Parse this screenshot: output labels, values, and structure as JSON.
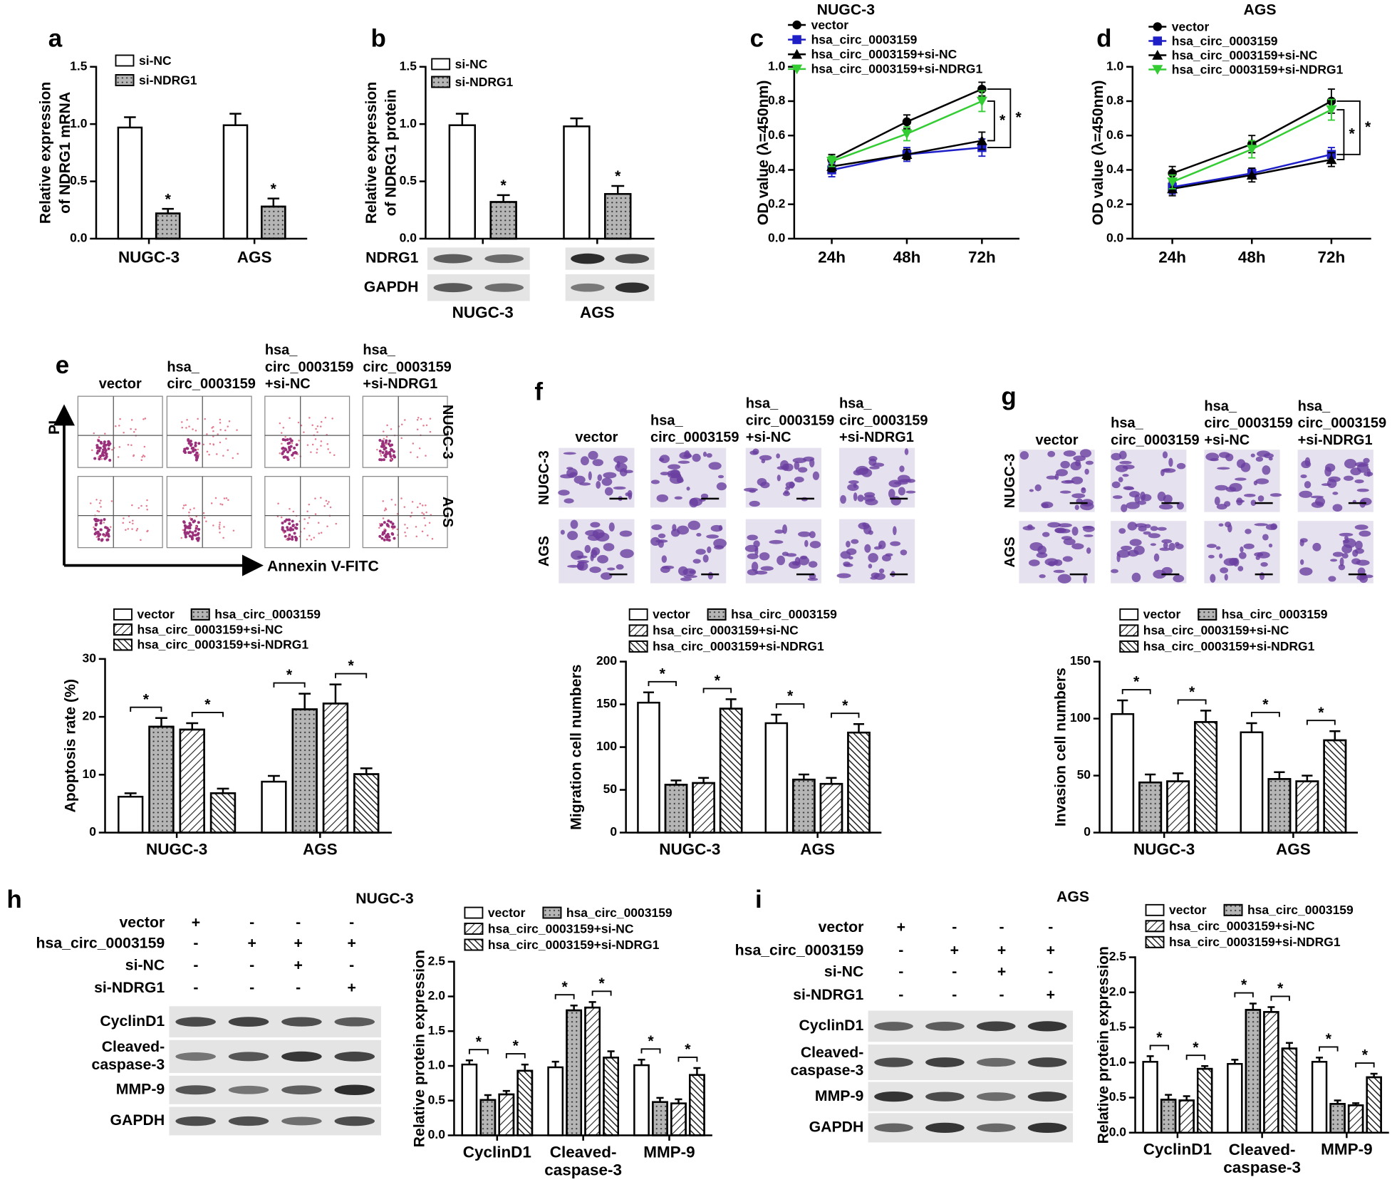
{
  "chart_data": [
    {
      "type": "bar",
      "label": "a",
      "ylabel": [
        "Relative expression",
        "of NDRG1 mRNA"
      ],
      "categories": [
        "NUGC-3",
        "AGS"
      ],
      "series": [
        {
          "name": "si-NC",
          "color": "#ffffff",
          "pattern": "none",
          "values": [
            0.97,
            0.99
          ],
          "errors": [
            0.09,
            0.1
          ]
        },
        {
          "name": "si-NDRG1",
          "color": "#b5b5b5",
          "pattern": "dots",
          "values": [
            0.22,
            0.28
          ],
          "errors": [
            0.04,
            0.07
          ]
        }
      ],
      "ylim": [
        0,
        1.5
      ],
      "yticks": [
        {
          "value": 0,
          "label": "0.0"
        },
        0.5,
        {
          "value": 1,
          "label": "1.0"
        },
        1.5
      ],
      "annotations": [
        "*",
        "*"
      ]
    },
    {
      "type": "bar",
      "label": "b",
      "ylabel": [
        "Relative expression",
        "of NDRG1 protein"
      ],
      "categories": [
        "NUGC-3",
        "AGS"
      ],
      "series": [
        {
          "name": "si-NC",
          "color": "#ffffff",
          "pattern": "none",
          "values": [
            0.99,
            0.98
          ],
          "errors": [
            0.1,
            0.07
          ]
        },
        {
          "name": "si-NDRG1",
          "color": "#b5b5b5",
          "pattern": "dots",
          "values": [
            0.32,
            0.39
          ],
          "errors": [
            0.06,
            0.07
          ]
        }
      ],
      "ylim": [
        0,
        1.5
      ],
      "yticks": [
        {
          "value": 0,
          "label": "0.0"
        },
        0.5,
        {
          "value": 1,
          "label": "1.0"
        },
        1.5
      ],
      "annotations": [
        "*",
        "*"
      ]
    },
    {
      "type": "line",
      "label": "c",
      "title": "NUGC-3",
      "ylabel": [
        "OD value (λ=450nm)"
      ],
      "categories": [
        "24h",
        "48h",
        "72h"
      ],
      "series": [
        {
          "name": "vector",
          "color": "#000000",
          "marker": "circle",
          "values": [
            0.46,
            0.68,
            0.87
          ],
          "errors": [
            0.03,
            0.04,
            0.04
          ]
        },
        {
          "name": "hsa_circ_0003159",
          "color": "#1f1fc8",
          "marker": "square",
          "values": [
            0.4,
            0.49,
            0.53
          ],
          "errors": [
            0.04,
            0.04,
            0.05
          ]
        },
        {
          "name": "hsa_circ_0003159+si-NC",
          "color": "#000000",
          "marker": "triangle",
          "values": [
            0.42,
            0.49,
            0.57
          ],
          "errors": [
            0.03,
            0.03,
            0.05
          ]
        },
        {
          "name": "hsa_circ_0003159+si-NDRG1",
          "color": "#33cc33",
          "marker": "triangle-down",
          "values": [
            0.45,
            0.61,
            0.8
          ],
          "errors": [
            0.03,
            0.04,
            0.06
          ]
        }
      ],
      "ylim": [
        0,
        1
      ],
      "yticks": [
        {
          "value": 0,
          "label": "0.0"
        },
        0.2,
        0.4,
        0.6,
        0.8,
        {
          "value": 1,
          "label": "1.0"
        }
      ],
      "annotations": [
        "*",
        "*"
      ]
    },
    {
      "type": "line",
      "label": "d",
      "title": "AGS",
      "ylabel": [
        "OD value (λ=450nm)"
      ],
      "categories": [
        "24h",
        "48h",
        "72h"
      ],
      "series": [
        {
          "name": "vector",
          "color": "#000000",
          "marker": "circle",
          "values": [
            0.38,
            0.55,
            0.8
          ],
          "errors": [
            0.04,
            0.05,
            0.07
          ]
        },
        {
          "name": "hsa_circ_0003159",
          "color": "#1f1fc8",
          "marker": "square",
          "values": [
            0.3,
            0.38,
            0.49
          ],
          "errors": [
            0.04,
            0.03,
            0.04
          ]
        },
        {
          "name": "hsa_circ_0003159+si-NC",
          "color": "#000000",
          "marker": "triangle",
          "values": [
            0.29,
            0.37,
            0.46
          ],
          "errors": [
            0.04,
            0.04,
            0.04
          ]
        },
        {
          "name": "hsa_circ_0003159+si-NDRG1",
          "color": "#33cc33",
          "marker": "triangle-down",
          "values": [
            0.33,
            0.52,
            0.75
          ],
          "errors": [
            0.04,
            0.05,
            0.06
          ]
        }
      ],
      "ylim": [
        0,
        1
      ],
      "yticks": [
        {
          "value": 0,
          "label": "0.0"
        },
        0.2,
        0.4,
        0.6,
        0.8,
        {
          "value": 1,
          "label": "1.0"
        }
      ],
      "annotations": [
        "*",
        "*"
      ]
    },
    {
      "type": "bar",
      "label": "e",
      "ylabel": [
        "Apoptosis rate (%)"
      ],
      "categories": [
        "NUGC-3",
        "AGS"
      ],
      "series": [
        {
          "name": "vector",
          "color": "#ffffff",
          "pattern": "none",
          "values": [
            6.2,
            8.8
          ],
          "errors": [
            0.6,
            1.0
          ]
        },
        {
          "name": "hsa_circ_0003159",
          "color": "#b5b5b5",
          "pattern": "dots",
          "values": [
            18.3,
            21.3
          ],
          "errors": [
            1.5,
            2.7
          ]
        },
        {
          "name": "hsa_circ_0003159+si-NC",
          "color": "#ffffff",
          "pattern": "hatch",
          "values": [
            17.8,
            22.3
          ],
          "errors": [
            1.1,
            3.3
          ]
        },
        {
          "name": "hsa_circ_0003159+si-NDRG1",
          "color": "#ffffff",
          "pattern": "backhatch",
          "values": [
            6.8,
            10.1
          ],
          "errors": [
            0.8,
            1.0
          ]
        }
      ],
      "ylim": [
        0,
        30
      ],
      "yticks": [
        0,
        10,
        20,
        30
      ],
      "annotations": [
        "*",
        "*",
        "*",
        "*"
      ]
    },
    {
      "type": "bar",
      "label": "f",
      "ylabel": [
        "Migration cell numbers"
      ],
      "categories": [
        "NUGC-3",
        "AGS"
      ],
      "series": [
        {
          "name": "vector",
          "color": "#ffffff",
          "pattern": "none",
          "values": [
            152,
            128
          ],
          "errors": [
            12,
            10
          ]
        },
        {
          "name": "hsa_circ_0003159",
          "color": "#b5b5b5",
          "pattern": "dots",
          "values": [
            56,
            62
          ],
          "errors": [
            5,
            6
          ]
        },
        {
          "name": "hsa_circ_0003159+si-NC",
          "color": "#ffffff",
          "pattern": "hatch",
          "values": [
            58,
            57
          ],
          "errors": [
            6,
            7
          ]
        },
        {
          "name": "hsa_circ_0003159+si-NDRG1",
          "color": "#ffffff",
          "pattern": "backhatch",
          "values": [
            145,
            117
          ],
          "errors": [
            11,
            10
          ]
        }
      ],
      "ylim": [
        0,
        200
      ],
      "yticks": [
        0,
        50,
        100,
        150,
        200
      ],
      "annotations": [
        "*",
        "*",
        "*",
        "*"
      ]
    },
    {
      "type": "bar",
      "label": "g",
      "ylabel": [
        "Invasion cell numbers"
      ],
      "categories": [
        "NUGC-3",
        "AGS"
      ],
      "series": [
        {
          "name": "vector",
          "color": "#ffffff",
          "pattern": "none",
          "values": [
            104,
            88
          ],
          "errors": [
            12,
            8
          ]
        },
        {
          "name": "hsa_circ_0003159",
          "color": "#b5b5b5",
          "pattern": "dots",
          "values": [
            44,
            47
          ],
          "errors": [
            7,
            6
          ]
        },
        {
          "name": "hsa_circ_0003159+si-NC",
          "color": "#ffffff",
          "pattern": "hatch",
          "values": [
            45,
            45
          ],
          "errors": [
            7,
            5
          ]
        },
        {
          "name": "hsa_circ_0003159+si-NDRG1",
          "color": "#ffffff",
          "pattern": "backhatch",
          "values": [
            97,
            81
          ],
          "errors": [
            10,
            8
          ]
        }
      ],
      "ylim": [
        0,
        150
      ],
      "yticks": [
        0,
        50,
        100,
        150
      ],
      "annotations": [
        "*",
        "*",
        "*",
        "*"
      ]
    },
    {
      "type": "bar",
      "label": "h",
      "ylabel": [
        "Relative protein expression"
      ],
      "categories": [
        "CyclinD1",
        "Cleaved-caspase-3",
        "MMP-9"
      ],
      "series": [
        {
          "name": "vector",
          "color": "#ffffff",
          "pattern": "none",
          "values": [
            1.02,
            0.98,
            1.01
          ],
          "errors": [
            0.06,
            0.08,
            0.08
          ]
        },
        {
          "name": "hsa_circ_0003159",
          "color": "#b5b5b5",
          "pattern": "dots",
          "values": [
            0.51,
            1.8,
            0.48
          ],
          "errors": [
            0.07,
            0.07,
            0.06
          ]
        },
        {
          "name": "hsa_circ_0003159+si-NC",
          "color": "#ffffff",
          "pattern": "hatch",
          "values": [
            0.59,
            1.84,
            0.46
          ],
          "errors": [
            0.05,
            0.08,
            0.06
          ]
        },
        {
          "name": "hsa_circ_0003159+si-NDRG1",
          "color": "#ffffff",
          "pattern": "backhatch",
          "values": [
            0.93,
            1.12,
            0.87
          ],
          "errors": [
            0.09,
            0.09,
            0.1
          ]
        }
      ],
      "ylim": [
        0,
        2.5
      ],
      "yticks": [
        {
          "value": 0,
          "label": "0.0"
        },
        0.5,
        {
          "value": 1,
          "label": "1.0"
        },
        1.5,
        {
          "value": 2,
          "label": "2.0"
        },
        2.5
      ],
      "annotations": [
        "*",
        "*",
        "*",
        "*",
        "*",
        "*"
      ]
    },
    {
      "type": "bar",
      "label": "i",
      "ylabel": [
        "Relative protein expression"
      ],
      "categories": [
        "CyclinD1",
        "Cleaved-caspase-3",
        "MMP-9"
      ],
      "series": [
        {
          "name": "vector",
          "color": "#ffffff",
          "pattern": "none",
          "values": [
            1.01,
            0.98,
            1.01
          ],
          "errors": [
            0.08,
            0.06,
            0.06
          ]
        },
        {
          "name": "hsa_circ_0003159",
          "color": "#b5b5b5",
          "pattern": "dots",
          "values": [
            0.47,
            1.75,
            0.41
          ],
          "errors": [
            0.07,
            0.09,
            0.05
          ]
        },
        {
          "name": "hsa_circ_0003159+si-NC",
          "color": "#ffffff",
          "pattern": "hatch",
          "values": [
            0.46,
            1.72,
            0.39
          ],
          "errors": [
            0.06,
            0.07,
            0.03
          ]
        },
        {
          "name": "hsa_circ_0003159+si-NDRG1",
          "color": "#ffffff",
          "pattern": "backhatch",
          "values": [
            0.91,
            1.2,
            0.79
          ],
          "errors": [
            0.04,
            0.08,
            0.05
          ]
        }
      ],
      "ylim": [
        0,
        2.5
      ],
      "yticks": [
        {
          "value": 0,
          "label": "0.0"
        },
        0.5,
        {
          "value": 1,
          "label": "1.0"
        },
        1.5,
        {
          "value": 2,
          "label": "2.0"
        },
        2.5
      ],
      "annotations": [
        "*",
        "*",
        "*",
        "*",
        "*",
        "*"
      ]
    }
  ],
  "images": [
    {
      "columns": [
        [
          "vector"
        ],
        [
          "hsa_",
          "circ_0003159"
        ],
        [
          "hsa_",
          "circ_0003159",
          "+si-NC"
        ],
        [
          "hsa_",
          "circ_0003159",
          "+si-NDRG1"
        ]
      ],
      "rows": [
        "NUGC-3",
        "AGS"
      ],
      "x_axis": "Annexin V-FITC",
      "y_axis": "PI"
    },
    {
      "columns": [
        [
          "vector"
        ],
        [
          "hsa_",
          "circ_0003159"
        ],
        [
          "hsa_",
          "circ_0003159",
          "+si-NC"
        ],
        [
          "hsa_",
          "circ_0003159",
          "+si-NDRG1"
        ]
      ],
      "rows": [
        "NUGC-3",
        "AGS"
      ]
    },
    {
      "columns": [
        [
          "vector"
        ],
        [
          "hsa_",
          "circ_0003159"
        ],
        [
          "hsa_",
          "circ_0003159",
          "+si-NC"
        ],
        [
          "hsa_",
          "circ_0003159",
          "+si-NDRG1"
        ]
      ],
      "rows": [
        "NUGC-3",
        "AGS"
      ]
    }
  ],
  "blots": [
    {
      "rows": [
        [
          "NDRG1"
        ],
        [
          "GAPDH"
        ]
      ]
    },
    {
      "title": "NUGC-3",
      "conditions": [
        {
          "label": "vector",
          "marks": [
            "+",
            "-",
            "-",
            "-"
          ]
        },
        {
          "label": "hsa_circ_0003159",
          "marks": [
            "-",
            "+",
            "+",
            "+"
          ]
        },
        {
          "label": "si-NC",
          "marks": [
            "-",
            "-",
            "+",
            "-"
          ]
        },
        {
          "label": "si-NDRG1",
          "marks": [
            "-",
            "-",
            "-",
            "+"
          ]
        }
      ],
      "rows": [
        [
          "CyclinD1"
        ],
        [
          "Cleaved-",
          "caspase-3"
        ],
        [
          "MMP-9"
        ],
        [
          "GAPDH"
        ]
      ]
    },
    {
      "title": "AGS",
      "conditions": [
        {
          "label": "vector",
          "marks": [
            "+",
            "-",
            "-",
            "-"
          ]
        },
        {
          "label": "hsa_circ_0003159",
          "marks": [
            "-",
            "+",
            "+",
            "+"
          ]
        },
        {
          "label": "si-NC",
          "marks": [
            "-",
            "-",
            "+",
            "-"
          ]
        },
        {
          "label": "si-NDRG1",
          "marks": [
            "-",
            "-",
            "-",
            "+"
          ]
        }
      ],
      "rows": [
        [
          "CyclinD1"
        ],
        [
          "Cleaved-",
          "caspase-3"
        ],
        [
          "MMP-9"
        ],
        [
          "GAPDH"
        ]
      ]
    }
  ]
}
